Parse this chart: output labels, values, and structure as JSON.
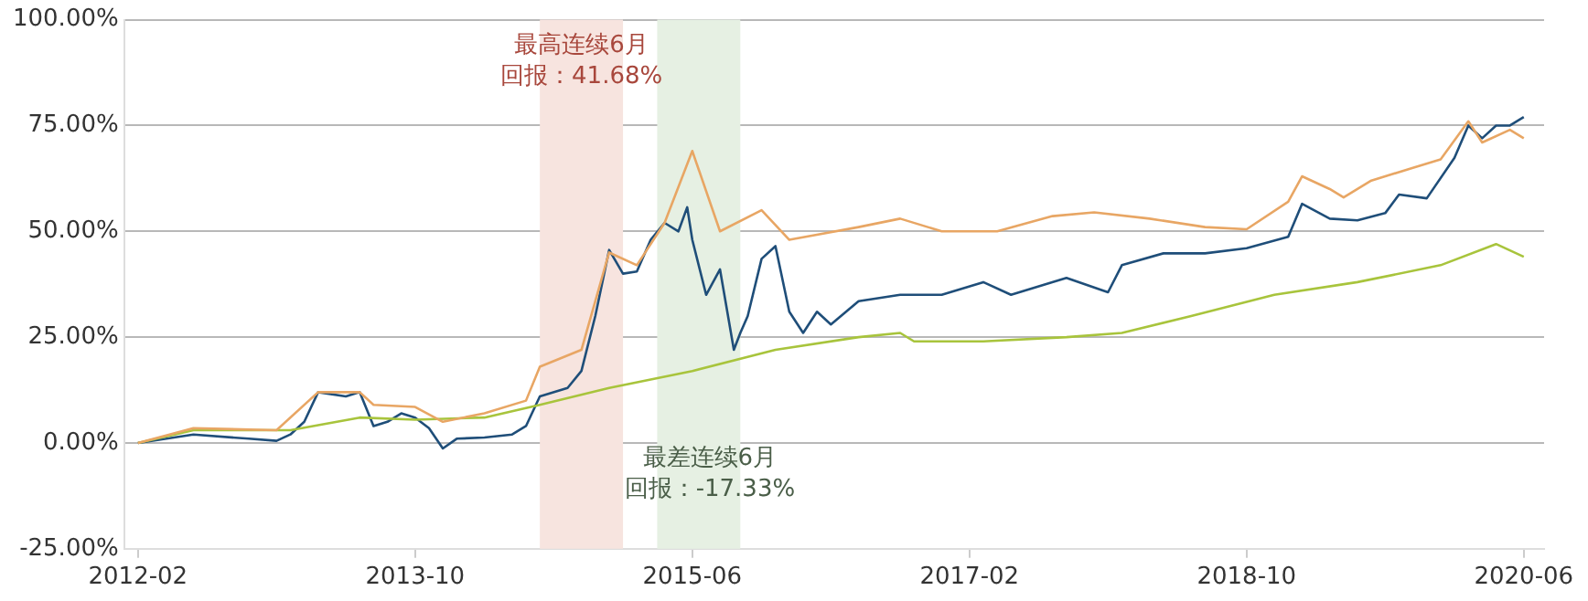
{
  "chart_data": {
    "type": "line",
    "legend": false,
    "grid": "y",
    "xlim": [
      "2012-01-01",
      "2020-07-15"
    ],
    "xticks": [
      "2012-02",
      "2013-10",
      "2015-06",
      "2017-02",
      "2018-10",
      "2020-06"
    ],
    "ylim": [
      -25,
      100
    ],
    "yticks": [
      {
        "value": -25,
        "label": "-25.00%"
      },
      {
        "value": 0,
        "label": "0.00%"
      },
      {
        "value": 25,
        "label": "25.00%"
      },
      {
        "value": 50,
        "label": "50.00%"
      },
      {
        "value": 75,
        "label": "75.00%"
      },
      {
        "value": 100,
        "label": "100.00%"
      }
    ],
    "bands": [
      {
        "axis": "x",
        "from": "2014-07",
        "to": "2015-01",
        "label": "最高连续6月",
        "color": "#f7e4df"
      },
      {
        "axis": "x",
        "from": "2015-03-15",
        "to": "2015-09-15",
        "label": "最差连续6月",
        "color": "#e6f0e3"
      }
    ],
    "annotations": [
      "回报：41.68%",
      "回报：-17.33%"
    ],
    "series": [
      {
        "color": "#e8a664",
        "x": [
          "2012-02",
          "2012-06",
          "2012-12",
          "2013-03",
          "2013-06",
          "2013-07",
          "2013-10",
          "2013-12",
          "2014-03",
          "2014-06",
          "2014-07",
          "2014-10",
          "2014-12",
          "2015-02",
          "2015-04",
          "2015-06",
          "2015-08",
          "2015-11",
          "2016-01",
          "2016-06",
          "2016-09",
          "2016-12",
          "2017-04",
          "2017-08",
          "2017-11",
          "2018-03",
          "2018-07",
          "2018-10",
          "2019-01",
          "2019-02",
          "2019-04",
          "2019-05",
          "2019-07",
          "2019-10",
          "2019-12",
          "2020-02",
          "2020-03",
          "2020-05",
          "2020-06"
        ],
        "values": [
          0,
          3.5,
          3,
          12,
          12,
          9,
          8.5,
          5,
          7,
          10,
          18,
          22,
          45,
          42,
          52,
          69,
          50,
          55,
          48,
          51,
          53,
          50,
          50,
          53.6,
          54.5,
          53,
          51,
          50.5,
          57,
          63,
          60,
          58,
          62,
          65,
          67,
          76,
          71,
          74,
          72
        ]
      },
      {
        "color": "#a8c43c",
        "x": [
          "2012-02",
          "2012-06",
          "2013-01",
          "2013-06",
          "2013-10",
          "2014-03",
          "2014-07",
          "2014-12",
          "2015-06",
          "2015-12",
          "2016-06",
          "2016-09",
          "2016-10",
          "2017-03",
          "2017-09",
          "2018-01",
          "2018-06",
          "2018-12",
          "2019-06",
          "2019-12",
          "2020-04",
          "2020-06"
        ],
        "values": [
          0,
          3,
          3,
          6,
          5.5,
          6,
          9,
          13,
          17,
          22,
          25,
          26,
          24,
          24,
          25,
          26,
          30,
          35,
          38,
          42,
          47,
          44
        ]
      },
      {
        "color": "#1f4e79",
        "x": [
          "2012-02",
          "2012-06",
          "2012-10",
          "2012-12",
          "2013-01",
          "2013-02",
          "2013-03",
          "2013-05",
          "2013-06",
          "2013-07",
          "2013-08",
          "2013-09",
          "2013-10",
          "2013-11",
          "2013-12",
          "2014-01",
          "2014-03",
          "2014-05",
          "2014-06",
          "2014-07",
          "2014-09",
          "2014-10",
          "2014-11",
          "2014-12",
          "2015-01",
          "2015-02",
          "2015-03",
          "2015-04",
          "2015-05",
          "2015-05-20",
          "2015-06",
          "2015-07",
          "2015-08",
          "2015-09",
          "2015-09-15",
          "2015-10",
          "2015-11",
          "2015-12",
          "2016-01",
          "2016-02",
          "2016-03",
          "2016-04",
          "2016-06",
          "2016-09",
          "2016-12",
          "2017-03",
          "2017-05",
          "2017-09",
          "2017-12",
          "2018-01",
          "2018-04",
          "2018-07",
          "2018-10",
          "2019-01",
          "2019-02",
          "2019-04",
          "2019-06",
          "2019-08",
          "2019-09",
          "2019-11",
          "2020-01",
          "2020-02",
          "2020-03",
          "2020-04",
          "2020-05",
          "2020-06"
        ],
        "values": [
          0,
          2,
          1,
          0.5,
          2,
          5,
          12,
          11,
          12,
          4,
          5,
          7,
          6,
          3.5,
          -1.3,
          1,
          1.3,
          2,
          4,
          11,
          13,
          17,
          30,
          45.6,
          40,
          40.5,
          48,
          52,
          50,
          55.7,
          48,
          35,
          41,
          22,
          26,
          30,
          43.5,
          46.5,
          31,
          26,
          31,
          28,
          33.5,
          35,
          35,
          38,
          35,
          39,
          35.6,
          42,
          44.8,
          44.8,
          46,
          48.7,
          56.5,
          53,
          52.6,
          54.3,
          58.7,
          57.8,
          67.4,
          75,
          72,
          75,
          75,
          77
        ]
      }
    ]
  }
}
